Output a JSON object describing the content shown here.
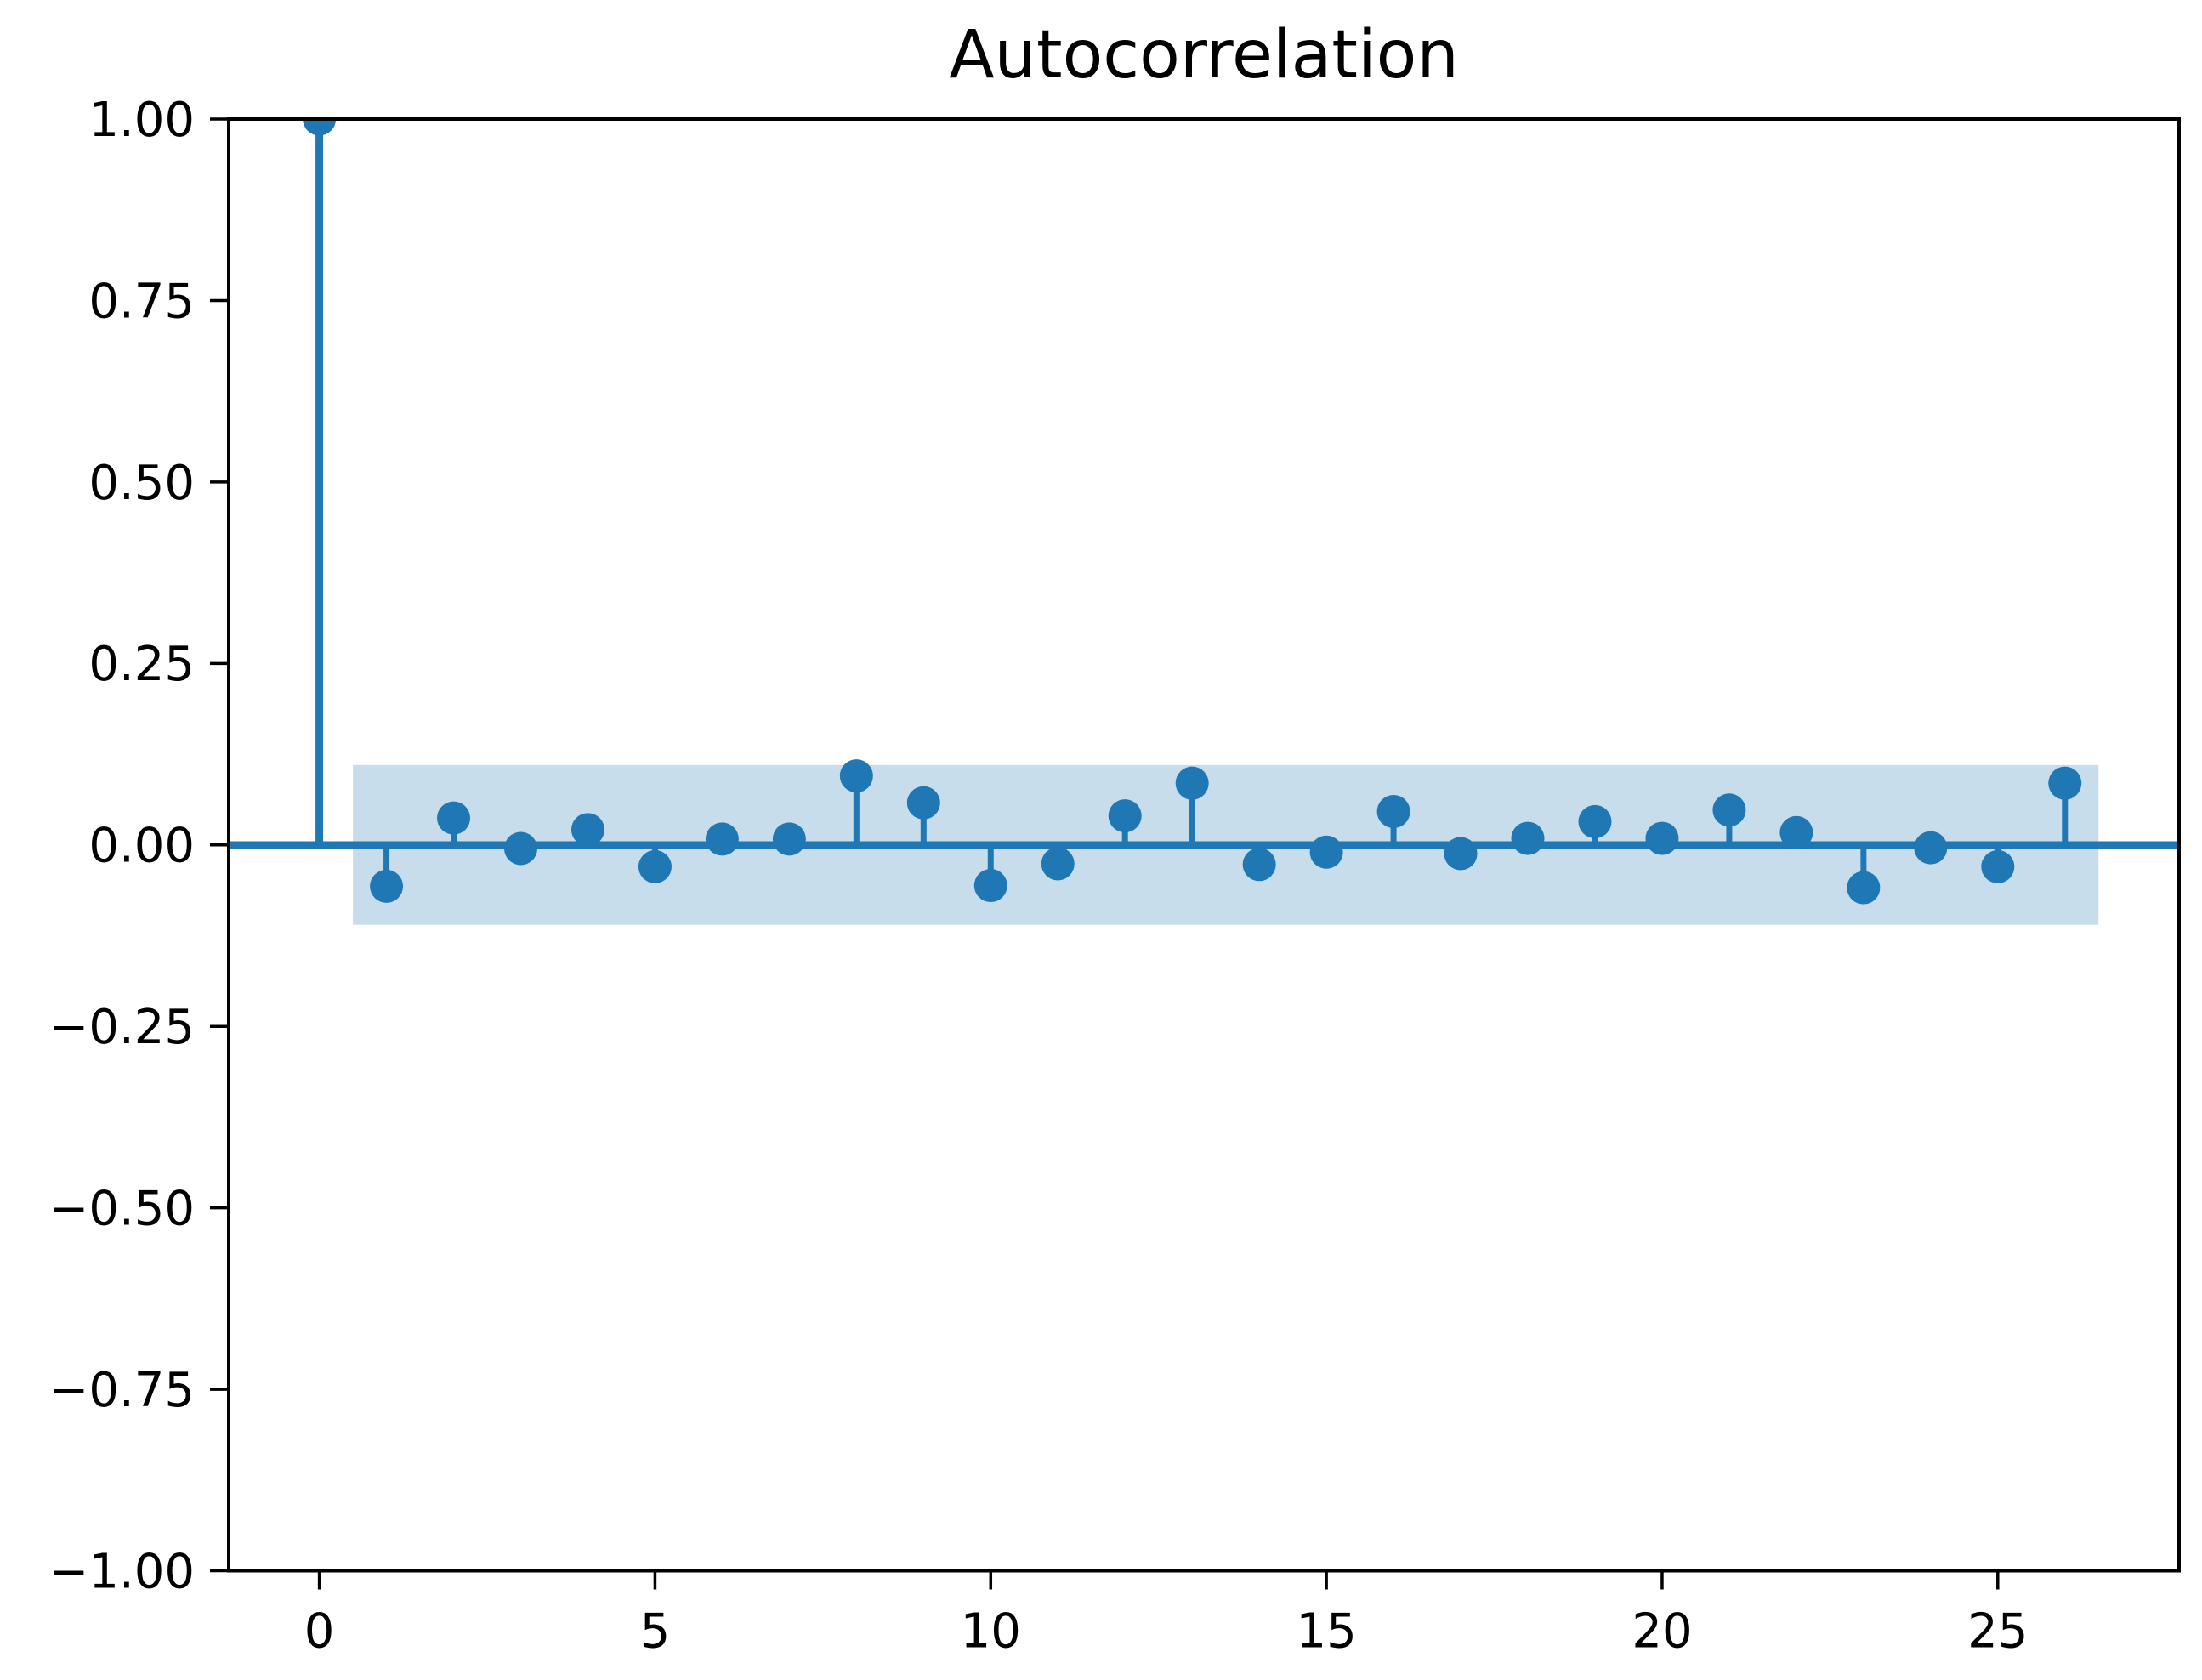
{
  "chart_data": {
    "type": "stem",
    "title": "Autocorrelation",
    "xlabel": "",
    "ylabel": "",
    "lags": [
      0,
      1,
      2,
      3,
      4,
      5,
      6,
      7,
      8,
      9,
      10,
      11,
      12,
      13,
      14,
      15,
      16,
      17,
      18,
      19,
      20,
      21,
      22,
      23,
      24,
      25,
      26
    ],
    "values": [
      1.0,
      -0.057,
      0.037,
      -0.005,
      0.021,
      -0.03,
      0.008,
      0.008,
      0.095,
      0.058,
      -0.056,
      -0.026,
      0.04,
      0.085,
      -0.027,
      -0.01,
      0.046,
      -0.012,
      0.009,
      0.032,
      0.009,
      0.048,
      0.017,
      -0.059,
      -0.004,
      -0.03,
      0.085
    ],
    "confidence_band": {
      "low": -0.11,
      "high": 0.11,
      "x_start": 0.5,
      "x_end": 26.5
    },
    "xlim": [
      -1.35,
      27.7
    ],
    "ylim": [
      -1.0,
      1.0
    ],
    "grid": "off",
    "legend": "none",
    "xticks": [
      0,
      5,
      10,
      15,
      20,
      25
    ],
    "xtick_labels": [
      "0",
      "5",
      "10",
      "15",
      "20",
      "25"
    ],
    "yticks": [
      1.0,
      0.75,
      0.5,
      0.25,
      0.0,
      -0.25,
      -0.5,
      -0.75,
      -1.0
    ],
    "ytick_labels": [
      "1.00",
      "0.75",
      "0.50",
      "0.25",
      "0.00",
      "−0.25",
      "−0.50",
      "−0.75",
      "−1.00"
    ],
    "colors": {
      "stem": "#1f77b4",
      "marker": "#1f77b4",
      "band": "#c7ddec",
      "axis": "#000000",
      "background": "#ffffff"
    }
  }
}
